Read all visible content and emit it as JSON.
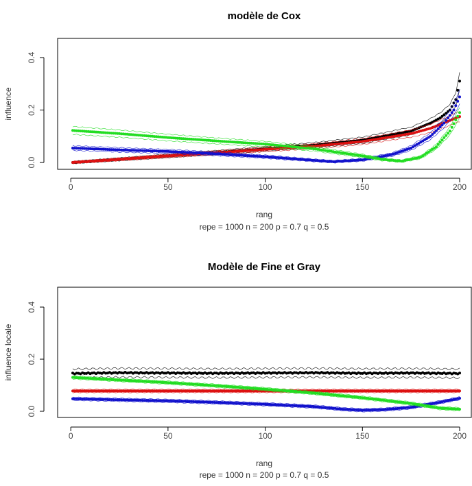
{
  "chart_data": [
    {
      "type": "line",
      "title": "modèle de Cox",
      "xlabel": "rang",
      "ylabel": "influence",
      "subtitle": "repe = 1000 n = 200   p = 0.7   q = 0.5",
      "xlim": [
        0,
        200
      ],
      "ylim": [
        0,
        0.45
      ],
      "xticks": [
        "0",
        "50",
        "100",
        "150",
        "200"
      ],
      "yticks": [
        "0.0",
        "0.2",
        "0.4"
      ],
      "grid": false,
      "series": [
        {
          "color": "#000000",
          "x": [
            1,
            25,
            50,
            75,
            100,
            125,
            150,
            175,
            185,
            190,
            195,
            198,
            200
          ],
          "y": [
            0.0,
            0.012,
            0.025,
            0.038,
            0.052,
            0.066,
            0.085,
            0.12,
            0.15,
            0.17,
            0.2,
            0.24,
            0.31
          ]
        },
        {
          "color": "#dd1111",
          "x": [
            1,
            25,
            50,
            75,
            100,
            125,
            150,
            175,
            185,
            190,
            195,
            198,
            200
          ],
          "y": [
            0.0,
            0.012,
            0.025,
            0.037,
            0.05,
            0.062,
            0.08,
            0.11,
            0.13,
            0.145,
            0.16,
            0.17,
            0.175
          ]
        },
        {
          "color": "#1111cc",
          "x": [
            1,
            25,
            50,
            75,
            100,
            125,
            135,
            150,
            165,
            175,
            185,
            192,
            197,
            200
          ],
          "y": [
            0.055,
            0.048,
            0.042,
            0.033,
            0.022,
            0.008,
            0.003,
            0.01,
            0.03,
            0.055,
            0.1,
            0.15,
            0.2,
            0.25
          ]
        },
        {
          "color": "#22dd22",
          "x": [
            1,
            25,
            50,
            75,
            100,
            125,
            150,
            160,
            170,
            180,
            188,
            195,
            200
          ],
          "y": [
            0.122,
            0.11,
            0.095,
            0.082,
            0.07,
            0.052,
            0.025,
            0.012,
            0.005,
            0.02,
            0.06,
            0.12,
            0.19
          ]
        }
      ]
    },
    {
      "type": "line",
      "title": "Modèle de Fine et Gray",
      "xlabel": "rang",
      "ylabel": "influence locale",
      "subtitle": "repe = 1000 n = 200   p = 0.7   q = 0.5",
      "xlim": [
        0,
        200
      ],
      "ylim": [
        0,
        0.45
      ],
      "xticks": [
        "0",
        "50",
        "100",
        "150",
        "200"
      ],
      "yticks": [
        "0.0",
        "0.2",
        "0.4"
      ],
      "grid": false,
      "series": [
        {
          "color": "#000000",
          "x": [
            1,
            25,
            50,
            75,
            100,
            125,
            150,
            175,
            200
          ],
          "y": [
            0.145,
            0.148,
            0.147,
            0.146,
            0.147,
            0.148,
            0.146,
            0.147,
            0.145
          ]
        },
        {
          "color": "#dd1111",
          "x": [
            1,
            25,
            50,
            75,
            100,
            125,
            150,
            175,
            200
          ],
          "y": [
            0.078,
            0.078,
            0.078,
            0.078,
            0.078,
            0.078,
            0.078,
            0.078,
            0.078
          ]
        },
        {
          "color": "#1111cc",
          "x": [
            1,
            25,
            50,
            75,
            100,
            125,
            140,
            150,
            160,
            175,
            190,
            200
          ],
          "y": [
            0.048,
            0.044,
            0.04,
            0.034,
            0.027,
            0.018,
            0.008,
            0.004,
            0.006,
            0.015,
            0.035,
            0.05
          ]
        },
        {
          "color": "#22dd22",
          "x": [
            1,
            25,
            50,
            75,
            100,
            125,
            150,
            175,
            190,
            200
          ],
          "y": [
            0.13,
            0.12,
            0.11,
            0.098,
            0.085,
            0.07,
            0.052,
            0.03,
            0.012,
            0.008
          ]
        }
      ]
    }
  ]
}
